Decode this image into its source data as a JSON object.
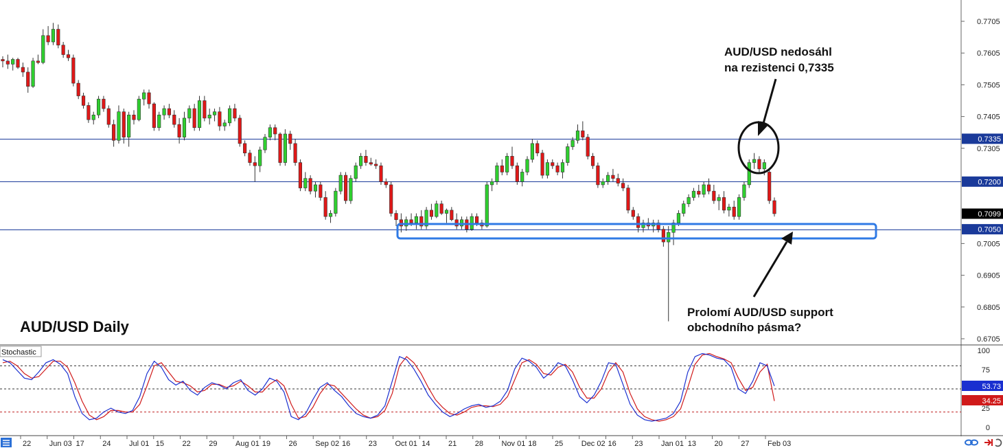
{
  "chart_data": {
    "type": "candlestick",
    "title": "AUD/USD Daily",
    "price_axis": {
      "ticks": [
        "0.7705",
        "0.7605",
        "0.7505",
        "0.7405",
        "0.7305",
        "0.7005",
        "0.6905",
        "0.6805",
        "0.6705"
      ],
      "range": [
        0.6705,
        0.7705
      ]
    },
    "levels": [
      {
        "value": 0.7335,
        "label": "0.7335",
        "color": "#1a3a9a"
      },
      {
        "value": 0.72,
        "label": "0.7200",
        "color": "#1a3a9a"
      },
      {
        "value": 0.705,
        "label": "0.7050",
        "color": "#1a3a9a"
      }
    ],
    "current_price": {
      "value": 0.7099,
      "label": "0.7099"
    },
    "x_labels": [
      "22",
      "Jun 03",
      "17",
      "24",
      "Jul 01",
      "15",
      "22",
      "29",
      "Aug 01",
      "19",
      "26",
      "Sep 02",
      "16",
      "23",
      "Oct 01",
      "14",
      "21",
      "28",
      "Nov 01",
      "18",
      "25",
      "Dec 02",
      "16",
      "23",
      "Jan 01",
      "13",
      "20",
      "27",
      "Feb 03"
    ],
    "candles": [
      [
        0.7585,
        0.7595,
        0.756,
        0.758
      ],
      [
        0.758,
        0.76,
        0.7555,
        0.757
      ],
      [
        0.757,
        0.759,
        0.755,
        0.7585
      ],
      [
        0.7585,
        0.759,
        0.7555,
        0.756
      ],
      [
        0.756,
        0.7575,
        0.753,
        0.7545
      ],
      [
        0.7545,
        0.756,
        0.748,
        0.75
      ],
      [
        0.75,
        0.759,
        0.7495,
        0.758
      ],
      [
        0.758,
        0.76,
        0.757,
        0.7575
      ],
      [
        0.7575,
        0.768,
        0.757,
        0.766
      ],
      [
        0.766,
        0.769,
        0.763,
        0.764
      ],
      [
        0.764,
        0.77,
        0.763,
        0.768
      ],
      [
        0.768,
        0.7695,
        0.762,
        0.763
      ],
      [
        0.763,
        0.764,
        0.759,
        0.76
      ],
      [
        0.76,
        0.7615,
        0.758,
        0.759
      ],
      [
        0.759,
        0.76,
        0.75,
        0.751
      ],
      [
        0.751,
        0.752,
        0.746,
        0.747
      ],
      [
        0.747,
        0.748,
        0.743,
        0.744
      ],
      [
        0.744,
        0.745,
        0.7385,
        0.7395
      ],
      [
        0.7395,
        0.742,
        0.738,
        0.741
      ],
      [
        0.741,
        0.747,
        0.74,
        0.746
      ],
      [
        0.746,
        0.747,
        0.742,
        0.743
      ],
      [
        0.743,
        0.744,
        0.737,
        0.738
      ],
      [
        0.738,
        0.7395,
        0.731,
        0.733
      ],
      [
        0.733,
        0.744,
        0.732,
        0.742
      ],
      [
        0.742,
        0.743,
        0.732,
        0.734
      ],
      [
        0.734,
        0.742,
        0.731,
        0.741
      ],
      [
        0.741,
        0.7425,
        0.738,
        0.7395
      ],
      [
        0.7395,
        0.747,
        0.739,
        0.746
      ],
      [
        0.746,
        0.749,
        0.744,
        0.748
      ],
      [
        0.748,
        0.749,
        0.743,
        0.7445
      ],
      [
        0.7445,
        0.745,
        0.736,
        0.737
      ],
      [
        0.737,
        0.742,
        0.736,
        0.741
      ],
      [
        0.741,
        0.744,
        0.7395,
        0.743
      ],
      [
        0.743,
        0.7445,
        0.74,
        0.741
      ],
      [
        0.741,
        0.7425,
        0.737,
        0.738
      ],
      [
        0.738,
        0.74,
        0.732,
        0.734
      ],
      [
        0.734,
        0.742,
        0.733,
        0.74
      ],
      [
        0.74,
        0.744,
        0.7385,
        0.743
      ],
      [
        0.743,
        0.7445,
        0.736,
        0.737
      ],
      [
        0.737,
        0.747,
        0.736,
        0.7455
      ],
      [
        0.7455,
        0.747,
        0.739,
        0.74
      ],
      [
        0.74,
        0.743,
        0.738,
        0.741
      ],
      [
        0.741,
        0.743,
        0.739,
        0.742
      ],
      [
        0.742,
        0.7435,
        0.736,
        0.7375
      ],
      [
        0.7375,
        0.7395,
        0.736,
        0.7385
      ],
      [
        0.7385,
        0.744,
        0.7375,
        0.743
      ],
      [
        0.743,
        0.7445,
        0.739,
        0.74
      ],
      [
        0.74,
        0.741,
        0.731,
        0.732
      ],
      [
        0.732,
        0.733,
        0.728,
        0.729
      ],
      [
        0.729,
        0.73,
        0.725,
        0.726
      ],
      [
        0.726,
        0.728,
        0.72,
        0.725
      ],
      [
        0.725,
        0.731,
        0.723,
        0.73
      ],
      [
        0.73,
        0.735,
        0.729,
        0.734
      ],
      [
        0.734,
        0.738,
        0.733,
        0.737
      ],
      [
        0.737,
        0.738,
        0.733,
        0.735
      ],
      [
        0.735,
        0.7355,
        0.725,
        0.726
      ],
      [
        0.726,
        0.7365,
        0.725,
        0.735
      ],
      [
        0.735,
        0.736,
        0.73,
        0.732
      ],
      [
        0.732,
        0.7335,
        0.725,
        0.726
      ],
      [
        0.726,
        0.727,
        0.717,
        0.718
      ],
      [
        0.718,
        0.723,
        0.717,
        0.721
      ],
      [
        0.721,
        0.722,
        0.716,
        0.717
      ],
      [
        0.717,
        0.72,
        0.715,
        0.719
      ],
      [
        0.719,
        0.72,
        0.714,
        0.715
      ],
      [
        0.715,
        0.717,
        0.708,
        0.709
      ],
      [
        0.709,
        0.711,
        0.707,
        0.71
      ],
      [
        0.71,
        0.718,
        0.709,
        0.717
      ],
      [
        0.717,
        0.723,
        0.716,
        0.722
      ],
      [
        0.722,
        0.723,
        0.713,
        0.714
      ],
      [
        0.714,
        0.722,
        0.713,
        0.721
      ],
      [
        0.721,
        0.726,
        0.72,
        0.725
      ],
      [
        0.725,
        0.729,
        0.724,
        0.728
      ],
      [
        0.728,
        0.73,
        0.725,
        0.726
      ],
      [
        0.726,
        0.7275,
        0.725,
        0.7255
      ],
      [
        0.7255,
        0.727,
        0.724,
        0.725
      ],
      [
        0.725,
        0.726,
        0.719,
        0.72
      ],
      [
        0.72,
        0.721,
        0.718,
        0.719
      ],
      [
        0.719,
        0.72,
        0.709,
        0.71
      ],
      [
        0.71,
        0.711,
        0.706,
        0.708
      ],
      [
        0.708,
        0.71,
        0.704,
        0.706
      ],
      [
        0.706,
        0.709,
        0.7045,
        0.708
      ],
      [
        0.708,
        0.71,
        0.706,
        0.707
      ],
      [
        0.707,
        0.71,
        0.705,
        0.709
      ],
      [
        0.709,
        0.711,
        0.705,
        0.706
      ],
      [
        0.706,
        0.712,
        0.705,
        0.711
      ],
      [
        0.711,
        0.713,
        0.708,
        0.709
      ],
      [
        0.709,
        0.714,
        0.7085,
        0.713
      ],
      [
        0.713,
        0.714,
        0.7095,
        0.71
      ],
      [
        0.71,
        0.7115,
        0.707,
        0.711
      ],
      [
        0.711,
        0.712,
        0.7075,
        0.708
      ],
      [
        0.708,
        0.71,
        0.705,
        0.706
      ],
      [
        0.706,
        0.709,
        0.705,
        0.708
      ],
      [
        0.708,
        0.709,
        0.704,
        0.705
      ],
      [
        0.705,
        0.71,
        0.7045,
        0.709
      ],
      [
        0.709,
        0.71,
        0.706,
        0.707
      ],
      [
        0.707,
        0.708,
        0.705,
        0.706
      ],
      [
        0.706,
        0.72,
        0.7055,
        0.719
      ],
      [
        0.719,
        0.721,
        0.717,
        0.72
      ],
      [
        0.72,
        0.726,
        0.719,
        0.725
      ],
      [
        0.725,
        0.727,
        0.722,
        0.723
      ],
      [
        0.723,
        0.729,
        0.722,
        0.728
      ],
      [
        0.728,
        0.731,
        0.724,
        0.725
      ],
      [
        0.725,
        0.726,
        0.719,
        0.72
      ],
      [
        0.72,
        0.724,
        0.7185,
        0.723
      ],
      [
        0.723,
        0.728,
        0.722,
        0.727
      ],
      [
        0.727,
        0.7335,
        0.726,
        0.732
      ],
      [
        0.732,
        0.733,
        0.728,
        0.729
      ],
      [
        0.729,
        0.73,
        0.721,
        0.722
      ],
      [
        0.722,
        0.727,
        0.721,
        0.726
      ],
      [
        0.726,
        0.727,
        0.724,
        0.725
      ],
      [
        0.725,
        0.726,
        0.722,
        0.723
      ],
      [
        0.723,
        0.727,
        0.721,
        0.726
      ],
      [
        0.726,
        0.732,
        0.725,
        0.731
      ],
      [
        0.731,
        0.734,
        0.73,
        0.733
      ],
      [
        0.733,
        0.738,
        0.732,
        0.736
      ],
      [
        0.736,
        0.739,
        0.733,
        0.734
      ],
      [
        0.734,
        0.735,
        0.727,
        0.728
      ],
      [
        0.728,
        0.729,
        0.724,
        0.725
      ],
      [
        0.725,
        0.726,
        0.718,
        0.719
      ],
      [
        0.719,
        0.721,
        0.718,
        0.72
      ],
      [
        0.72,
        0.723,
        0.719,
        0.722
      ],
      [
        0.722,
        0.724,
        0.72,
        0.721
      ],
      [
        0.721,
        0.7225,
        0.7185,
        0.7195
      ],
      [
        0.7195,
        0.721,
        0.717,
        0.718
      ],
      [
        0.718,
        0.719,
        0.71,
        0.711
      ],
      [
        0.711,
        0.712,
        0.708,
        0.709
      ],
      [
        0.709,
        0.71,
        0.704,
        0.7055
      ],
      [
        0.7055,
        0.708,
        0.704,
        0.707
      ],
      [
        0.707,
        0.7085,
        0.705,
        0.706
      ],
      [
        0.706,
        0.708,
        0.704,
        0.707
      ],
      [
        0.707,
        0.708,
        0.704,
        0.705
      ],
      [
        0.705,
        0.706,
        0.6995,
        0.701
      ],
      [
        0.701,
        0.706,
        0.676,
        0.704
      ],
      [
        0.704,
        0.708,
        0.7,
        0.707
      ],
      [
        0.707,
        0.711,
        0.706,
        0.71
      ],
      [
        0.71,
        0.714,
        0.709,
        0.713
      ],
      [
        0.713,
        0.716,
        0.712,
        0.715
      ],
      [
        0.715,
        0.718,
        0.714,
        0.717
      ],
      [
        0.717,
        0.719,
        0.715,
        0.716
      ],
      [
        0.716,
        0.72,
        0.715,
        0.719
      ],
      [
        0.719,
        0.721,
        0.716,
        0.717
      ],
      [
        0.717,
        0.719,
        0.713,
        0.714
      ],
      [
        0.714,
        0.716,
        0.711,
        0.715
      ],
      [
        0.715,
        0.717,
        0.71,
        0.711
      ],
      [
        0.711,
        0.713,
        0.709,
        0.712
      ],
      [
        0.712,
        0.714,
        0.708,
        0.709
      ],
      [
        0.709,
        0.716,
        0.708,
        0.715
      ],
      [
        0.715,
        0.72,
        0.714,
        0.719
      ],
      [
        0.719,
        0.727,
        0.718,
        0.726
      ],
      [
        0.726,
        0.729,
        0.724,
        0.727
      ],
      [
        0.727,
        0.728,
        0.723,
        0.724
      ],
      [
        0.724,
        0.727,
        0.722,
        0.726
      ],
      [
        0.723,
        0.724,
        0.713,
        0.714
      ],
      [
        0.714,
        0.715,
        0.709,
        0.7099
      ]
    ],
    "annotations": [
      {
        "lines": [
          "AUD/USD nedosáhl",
          "na rezistenci 0,7335"
        ]
      },
      {
        "lines": [
          "Prolomí AUD/USD support",
          "obchodního pásma?"
        ]
      }
    ],
    "stochastic": {
      "label": "Stochastic",
      "ticks": [
        "100",
        "75",
        "25",
        "0"
      ],
      "levels": [
        80,
        50,
        20
      ],
      "k_label": "53.73",
      "d_label": "34.25",
      "k_color": "#1a2fd0",
      "d_color": "#d01a1a",
      "k": [
        88,
        84,
        74,
        64,
        62,
        72,
        84,
        88,
        82,
        70,
        40,
        18,
        10,
        12,
        20,
        25,
        20,
        18,
        22,
        40,
        70,
        86,
        78,
        62,
        55,
        60,
        48,
        42,
        52,
        58,
        55,
        50,
        58,
        62,
        48,
        42,
        50,
        64,
        60,
        46,
        14,
        10,
        18,
        36,
        52,
        58,
        48,
        40,
        28,
        18,
        14,
        12,
        16,
        28,
        60,
        92,
        88,
        76,
        60,
        42,
        30,
        20,
        14,
        18,
        24,
        28,
        30,
        26,
        28,
        34,
        48,
        76,
        90,
        86,
        78,
        64,
        72,
        84,
        80,
        62,
        40,
        32,
        42,
        60,
        84,
        82,
        56,
        30,
        16,
        10,
        8,
        10,
        12,
        18,
        34,
        72,
        92,
        96,
        94,
        90,
        88,
        78,
        50,
        44,
        60,
        84,
        80,
        53.73
      ],
      "d": [
        84,
        86,
        80,
        70,
        64,
        66,
        76,
        86,
        86,
        78,
        58,
        34,
        16,
        10,
        14,
        22,
        22,
        20,
        20,
        30,
        54,
        80,
        84,
        72,
        60,
        58,
        54,
        46,
        48,
        56,
        56,
        52,
        54,
        60,
        54,
        46,
        46,
        56,
        62,
        54,
        30,
        12,
        14,
        26,
        44,
        56,
        54,
        44,
        34,
        24,
        16,
        12,
        14,
        22,
        44,
        80,
        92,
        84,
        70,
        52,
        36,
        26,
        18,
        16,
        20,
        26,
        28,
        28,
        27,
        30,
        40,
        62,
        84,
        88,
        82,
        70,
        68,
        78,
        82,
        72,
        52,
        38,
        38,
        50,
        72,
        84,
        72,
        44,
        24,
        14,
        10,
        8,
        10,
        14,
        24,
        52,
        82,
        94,
        96,
        92,
        89,
        84,
        64,
        48,
        52,
        72,
        82,
        34.25
      ]
    }
  },
  "ui": {
    "bottom_icons": [
      "menu-icon",
      "link-icon",
      "arrow-right-icon",
      "refresh-icon"
    ]
  }
}
